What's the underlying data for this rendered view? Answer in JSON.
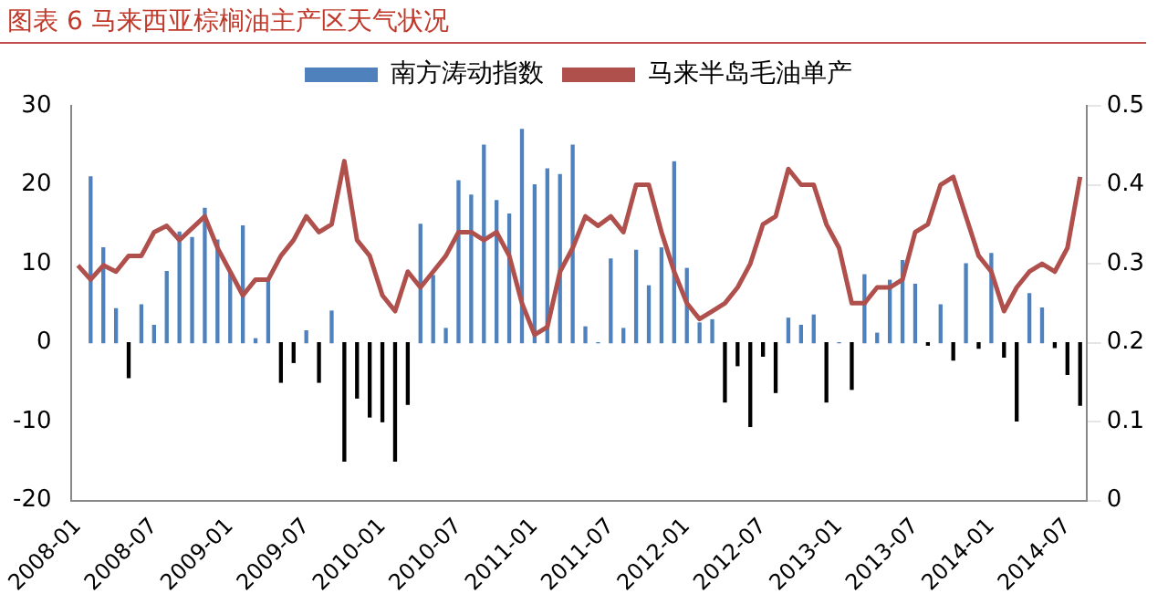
{
  "chart_data": {
    "type": "bar",
    "title": "图表 6 马来西亚棕榈油主产区天气状况",
    "categories": [
      "2008-01",
      null,
      null,
      null,
      null,
      null,
      "2008-07",
      null,
      null,
      null,
      null,
      null,
      "2009-01",
      null,
      null,
      null,
      null,
      null,
      "2009-07",
      null,
      null,
      null,
      null,
      null,
      "2010-01",
      null,
      null,
      null,
      null,
      null,
      "2010-07",
      null,
      null,
      null,
      null,
      null,
      "2011-01",
      null,
      null,
      null,
      null,
      null,
      "2011-07",
      null,
      null,
      null,
      null,
      null,
      "2012-01",
      null,
      null,
      null,
      null,
      null,
      "2012-07",
      null,
      null,
      null,
      null,
      null,
      "2013-01",
      null,
      null,
      null,
      null,
      null,
      "2013-07",
      null,
      null,
      null,
      null,
      null,
      "2014-01",
      null,
      null,
      null,
      null,
      null,
      "2014-07",
      null
    ],
    "series": [
      {
        "name": "南方涛动指数",
        "color": "#4f81bd",
        "values": [
          null,
          21,
          12,
          4.3,
          -4.4,
          4.8,
          2.2,
          9,
          14,
          13.3,
          17,
          13,
          9,
          14.8,
          0.5,
          8,
          -5,
          -2.5,
          1.5,
          -5,
          4,
          -15,
          -7,
          -9.4,
          -10,
          -15,
          -7.8,
          15,
          8.5,
          1.8,
          20.5,
          18.7,
          25,
          18,
          16.3,
          27,
          20,
          22,
          21.3,
          25,
          2,
          0,
          10.6,
          1.8,
          11.7,
          7.2,
          12,
          22.9,
          9.4,
          2.5,
          2.9,
          -7.5,
          -2.9,
          -10.6,
          -1.7,
          -6.3,
          3.1,
          2.2,
          3.5,
          -7.5,
          0,
          -5.9,
          8.6,
          1.2,
          7.9,
          10.4,
          7.4,
          -0.3,
          4.8,
          -2.2,
          10,
          -0.7,
          11.3,
          -1.8,
          -9.9,
          6.2,
          4.4,
          -0.6,
          -4,
          -7.9
        ],
        "colors": [
          "#4f81bd",
          "#4f81bd",
          "#4f81bd",
          "#4f81bd",
          "#000000",
          "#4f81bd",
          "#4f81bd",
          "#4f81bd",
          "#4f81bd",
          "#4f81bd",
          "#4f81bd",
          "#4f81bd",
          "#4f81bd",
          "#4f81bd",
          "#4f81bd",
          "#4f81bd",
          "#000000",
          "#000000",
          "#4f81bd",
          "#000000",
          "#4f81bd",
          "#000000",
          "#000000",
          "#000000",
          "#000000",
          "#000000",
          "#000000",
          "#4f81bd",
          "#4f81bd",
          "#4f81bd",
          "#4f81bd",
          "#4f81bd",
          "#4f81bd",
          "#4f81bd",
          "#4f81bd",
          "#4f81bd",
          "#4f81bd",
          "#4f81bd",
          "#4f81bd",
          "#4f81bd",
          "#4f81bd",
          "#4f81bd",
          "#4f81bd",
          "#4f81bd",
          "#4f81bd",
          "#4f81bd",
          "#4f81bd",
          "#4f81bd",
          "#4f81bd",
          "#4f81bd",
          "#4f81bd",
          "#000000",
          "#000000",
          "#000000",
          "#000000",
          "#000000",
          "#4f81bd",
          "#4f81bd",
          "#4f81bd",
          "#000000",
          "#4f81bd",
          "#000000",
          "#4f81bd",
          "#4f81bd",
          "#4f81bd",
          "#4f81bd",
          "#4f81bd",
          "#000000",
          "#4f81bd",
          "#000000",
          "#4f81bd",
          "#000000",
          "#4f81bd",
          "#000000",
          "#000000",
          "#4f81bd",
          "#4f81bd",
          "#000000",
          "#000000",
          "#000000"
        ]
      },
      {
        "name": "马来半岛毛油单产",
        "type": "line",
        "axis": "y2",
        "color": "#b0504d",
        "values": [
          0.298,
          0.28,
          0.298,
          0.29,
          0.31,
          0.31,
          0.34,
          0.348,
          0.33,
          0.345,
          0.36,
          0.32,
          0.29,
          0.26,
          0.28,
          0.28,
          0.31,
          0.33,
          0.36,
          0.34,
          0.35,
          0.43,
          0.33,
          0.31,
          0.26,
          0.24,
          0.29,
          0.27,
          0.29,
          0.31,
          0.34,
          0.34,
          0.33,
          0.34,
          0.31,
          0.25,
          0.21,
          0.22,
          0.29,
          0.32,
          0.36,
          0.348,
          0.36,
          0.34,
          0.4,
          0.4,
          0.34,
          0.29,
          0.25,
          0.23,
          0.24,
          0.25,
          0.27,
          0.3,
          0.35,
          0.36,
          0.42,
          0.4,
          0.4,
          0.35,
          0.32,
          0.25,
          0.25,
          0.27,
          0.27,
          0.28,
          0.34,
          0.35,
          0.4,
          0.41,
          0.36,
          0.31,
          0.29,
          0.24,
          0.27,
          0.29,
          0.3,
          0.29,
          0.32,
          0.41
        ]
      }
    ],
    "ylim": [
      -20,
      30
    ],
    "yticks": [
      -20,
      -10,
      0,
      10,
      20,
      30
    ],
    "y2lim": [
      0,
      0.5
    ],
    "y2ticks": [
      0,
      0.1,
      0.2,
      0.3,
      0.4,
      0.5
    ],
    "legend": "top",
    "grid": false,
    "marker": "none"
  }
}
